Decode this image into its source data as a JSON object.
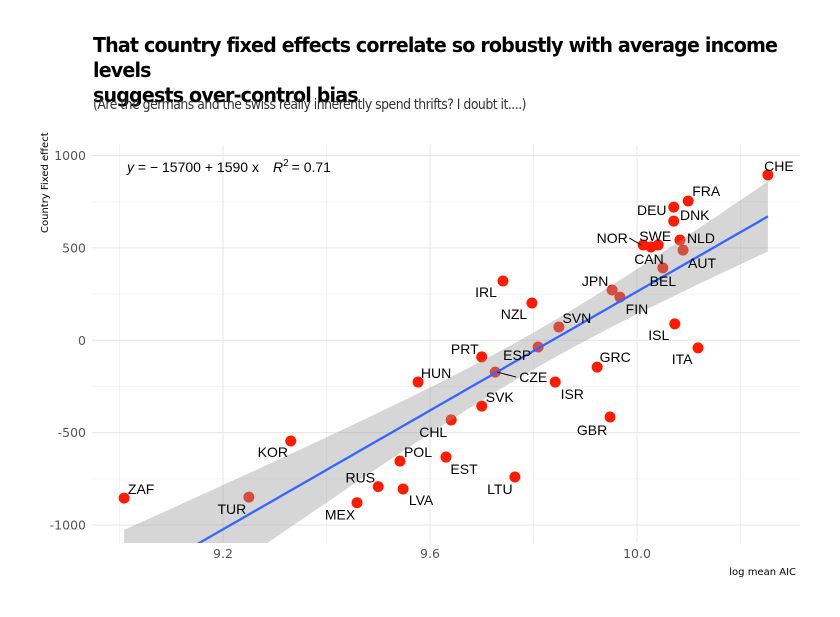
{
  "chart_data": {
    "type": "scatter",
    "title": "That country fixed effects correlate so robustly with average income levels suggests over-control bias",
    "title_lines": [
      "That country fixed effects correlate so robustly with average income levels",
      "suggests over-control bias"
    ],
    "subtitle": "(Are the germans and the swiss really inherently spend thrifts?  I doubt it....)",
    "xlabel": "log mean AIC",
    "ylabel": "Country Fixed effect",
    "xlim": [
      8.94,
      10.31
    ],
    "ylim": [
      -1100,
      1070
    ],
    "x_ticks": [
      9.2,
      9.6,
      10.0
    ],
    "x_tick_labels": [
      "9.2",
      "9.6",
      "10.0"
    ],
    "x_minor_gridlines": [
      9.0,
      9.4,
      9.8,
      10.2
    ],
    "y_ticks": [
      -1000,
      -500,
      0,
      500,
      1000
    ],
    "y_tick_labels": [
      "-1000",
      "-500",
      "0",
      "500",
      "1000"
    ],
    "y_minor_gridlines": [
      -750,
      -250,
      250,
      750
    ],
    "grid": true,
    "legend": "none",
    "regression": {
      "method": "lm",
      "equation_prefix": "y = − 15700 + 1590 x",
      "r2_label": "R",
      "r2_value": "= 0.71",
      "intercept": -15640,
      "slope": 1590,
      "confidence_band": true
    },
    "colors": {
      "points": "#ff1a00",
      "line": "#3366ff",
      "band": "#999999",
      "grid": "#e5e5e5"
    },
    "points": [
      {
        "label": "CHE",
        "x": 10.253,
        "y": 895
      },
      {
        "label": "FRA",
        "x": 10.099,
        "y": 754
      },
      {
        "label": "DEU",
        "x": 10.071,
        "y": 721
      },
      {
        "label": "DNK",
        "x": 10.071,
        "y": 645
      },
      {
        "label": "SWE",
        "x": 10.041,
        "y": 516
      },
      {
        "label": "NOR",
        "x": 10.012,
        "y": 516
      },
      {
        "label": "CAN",
        "x": 10.027,
        "y": 505
      },
      {
        "label": "NLD",
        "x": 10.083,
        "y": 543
      },
      {
        "label": "AUT",
        "x": 10.089,
        "y": 488
      },
      {
        "label": "BEL",
        "x": 10.05,
        "y": 392
      },
      {
        "label": "JPN",
        "x": 9.952,
        "y": 272
      },
      {
        "label": "FIN",
        "x": 9.967,
        "y": 234
      },
      {
        "label": "IRL",
        "x": 9.741,
        "y": 321
      },
      {
        "label": "NZL",
        "x": 9.797,
        "y": 202
      },
      {
        "label": "SVN",
        "x": 9.849,
        "y": 72
      },
      {
        "label": "ISL",
        "x": 10.073,
        "y": 89
      },
      {
        "label": "ITA",
        "x": 10.118,
        "y": -41
      },
      {
        "label": "PRT",
        "x": 9.7,
        "y": -90
      },
      {
        "label": "ESP",
        "x": 9.809,
        "y": -36
      },
      {
        "label": "GRC",
        "x": 9.923,
        "y": -145
      },
      {
        "label": "HUN",
        "x": 9.577,
        "y": -226
      },
      {
        "label": "CZE",
        "x": 9.726,
        "y": -172
      },
      {
        "label": "ISR",
        "x": 9.842,
        "y": -226
      },
      {
        "label": "SVK",
        "x": 9.7,
        "y": -356
      },
      {
        "label": "CHL",
        "x": 9.641,
        "y": -431
      },
      {
        "label": "GBR",
        "x": 9.948,
        "y": -415
      },
      {
        "label": "KOR",
        "x": 9.331,
        "y": -545
      },
      {
        "label": "POL",
        "x": 9.542,
        "y": -654
      },
      {
        "label": "EST",
        "x": 9.631,
        "y": -632
      },
      {
        "label": "RUS",
        "x": 9.5,
        "y": -792
      },
      {
        "label": "LTU",
        "x": 9.764,
        "y": -740
      },
      {
        "label": "ZAF",
        "x": 9.009,
        "y": -854
      },
      {
        "label": "LVA",
        "x": 9.548,
        "y": -805
      },
      {
        "label": "TUR",
        "x": 9.25,
        "y": -849
      },
      {
        "label": "MEX",
        "x": 9.459,
        "y": -879
      }
    ]
  }
}
